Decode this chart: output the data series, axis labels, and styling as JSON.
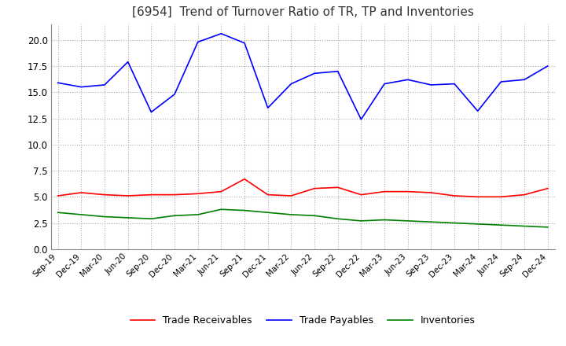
{
  "title": "[6954]  Trend of Turnover Ratio of TR, TP and Inventories",
  "title_fontsize": 11,
  "ylim": [
    0,
    21.5
  ],
  "yticks": [
    0.0,
    2.5,
    5.0,
    7.5,
    10.0,
    12.5,
    15.0,
    17.5,
    20.0
  ],
  "ytick_labels": [
    "0.0",
    "2.5",
    "5.0",
    "7.5",
    "10.0",
    "12.5",
    "15.0",
    "17.5",
    "20.0"
  ],
  "background_color": "#ffffff",
  "grid_color": "#aaaaaa",
  "labels": [
    "Sep-19",
    "Dec-19",
    "Mar-20",
    "Jun-20",
    "Sep-20",
    "Dec-20",
    "Mar-21",
    "Jun-21",
    "Sep-21",
    "Dec-21",
    "Mar-22",
    "Jun-22",
    "Sep-22",
    "Dec-22",
    "Mar-23",
    "Jun-23",
    "Sep-23",
    "Dec-23",
    "Mar-24",
    "Jun-24",
    "Sep-24",
    "Dec-24"
  ],
  "trade_receivables": [
    5.1,
    5.4,
    5.2,
    5.1,
    5.2,
    5.2,
    5.3,
    5.5,
    6.7,
    5.2,
    5.1,
    5.8,
    5.9,
    5.2,
    5.5,
    5.5,
    5.4,
    5.1,
    5.0,
    5.0,
    5.2,
    5.8
  ],
  "trade_payables": [
    15.9,
    15.5,
    15.7,
    17.9,
    13.1,
    14.8,
    19.8,
    20.6,
    19.7,
    13.5,
    15.8,
    16.8,
    17.0,
    12.4,
    15.8,
    16.2,
    15.7,
    15.8,
    13.2,
    16.0,
    16.2,
    17.5
  ],
  "inventories": [
    3.5,
    3.3,
    3.1,
    3.0,
    2.9,
    3.2,
    3.3,
    3.8,
    3.7,
    3.5,
    3.3,
    3.2,
    2.9,
    2.7,
    2.8,
    2.7,
    2.6,
    2.5,
    2.4,
    2.3,
    2.2,
    2.1
  ],
  "tr_color": "#ff0000",
  "tp_color": "#0000ff",
  "inv_color": "#008000",
  "legend_labels": [
    "Trade Receivables",
    "Trade Payables",
    "Inventories"
  ]
}
